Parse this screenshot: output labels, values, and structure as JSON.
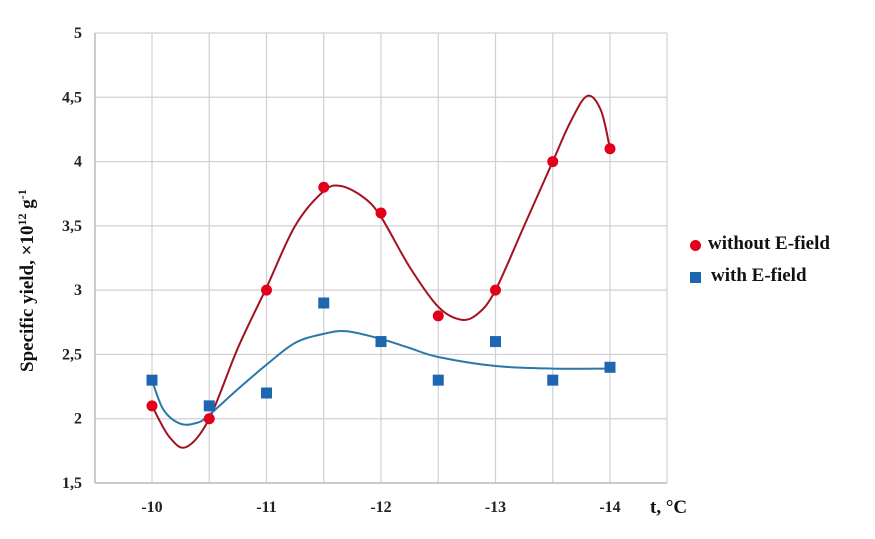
{
  "chart_data": {
    "type": "scatter",
    "title": "",
    "xlabel": "t, °C",
    "ylabel": "Specific yield, ×10¹² g⁻¹",
    "ylim": [
      1.5,
      5
    ],
    "yticks": [
      "1,5",
      "2",
      "2,5",
      "3",
      "3,5",
      "4",
      "4,5",
      "5"
    ],
    "ytick_values": [
      1.5,
      2,
      2.5,
      3,
      3.5,
      4,
      4.5,
      5
    ],
    "xticks": [
      "-10",
      "-11",
      "-12",
      "-13",
      "-14"
    ],
    "x": [
      -10,
      -10.5,
      -11,
      -11.5,
      -12,
      -12.5,
      -13,
      -13.5,
      -14
    ],
    "grid": true,
    "legend_position": "right",
    "series": [
      {
        "name": "without E-field",
        "marker": "circle",
        "color": "#E3001B",
        "line_color": "#A3101E",
        "values": [
          2.1,
          2.0,
          3.0,
          3.8,
          3.6,
          2.8,
          3.0,
          4.0,
          4.1
        ],
        "trendline": "smoothed polynomial"
      },
      {
        "name": "with E-field",
        "marker": "square",
        "color": "#1F66B0",
        "line_color": "#2A77AA",
        "values": [
          2.3,
          2.1,
          2.2,
          2.9,
          2.6,
          2.3,
          2.6,
          2.3,
          2.4
        ],
        "trendline": "smoothed polynomial"
      }
    ]
  },
  "legend": {
    "items": [
      {
        "label": "without E-field",
        "color": "#E3001B"
      },
      {
        "label": "with E-field",
        "color": "#1F66B0"
      }
    ]
  },
  "axes": {
    "x_title": "t, °C",
    "y_title_main": "Specific yield, ×10",
    "y_title_exp": "12",
    "y_title_unit": " g",
    "y_title_unit_exp": "-1"
  }
}
